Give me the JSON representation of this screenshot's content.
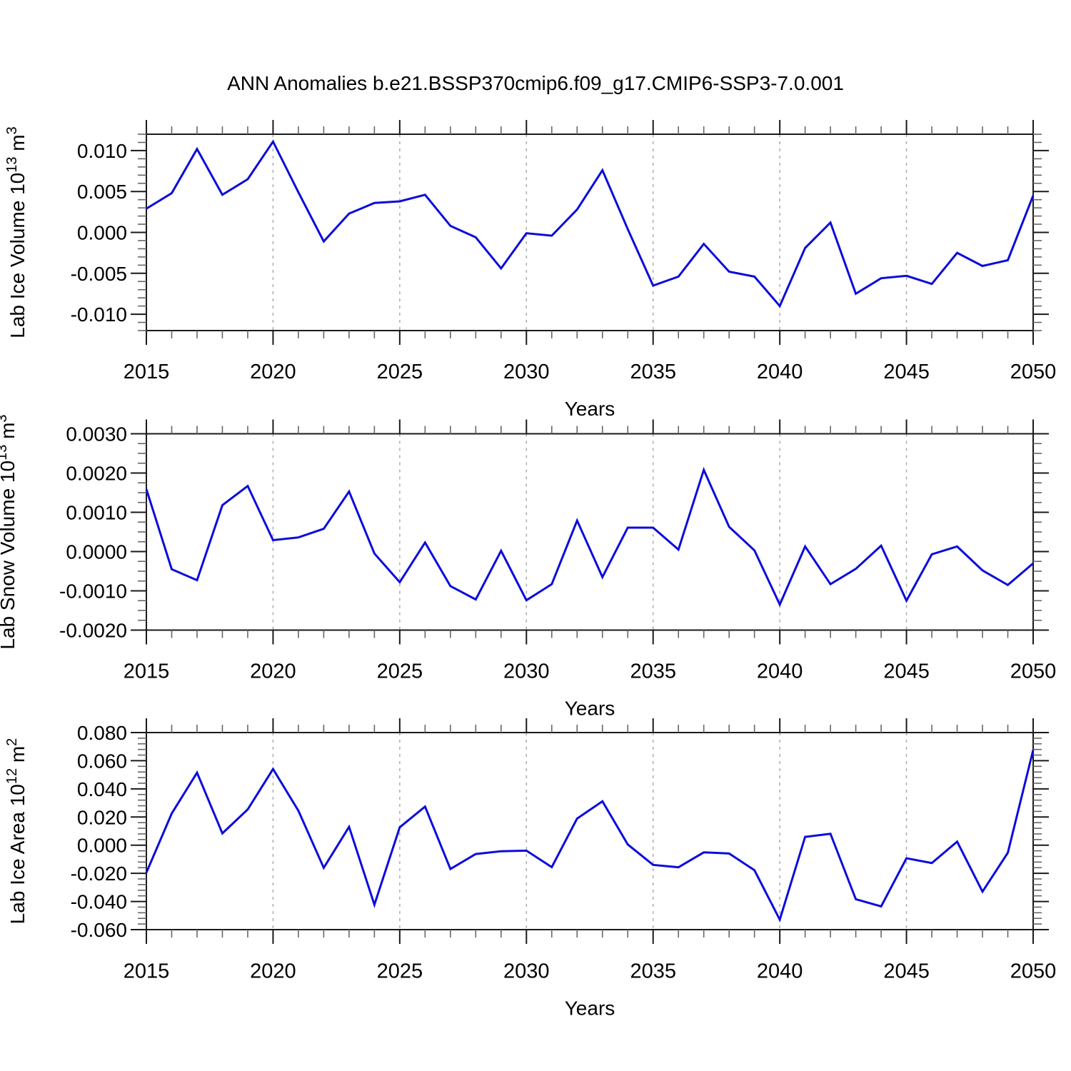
{
  "title": "ANN Anomalies b.e21.BSSP370cmip6.f09_g17.CMIP6-SSP3-7.0.001",
  "colors": {
    "line": "#0b0bdd",
    "grid": "#ababab",
    "axis": "#1a1a1a",
    "minor_tick": "#666666",
    "text": "#000000",
    "background": "#ffffff"
  },
  "x_axis": {
    "label": "Years",
    "range": [
      2015,
      2050
    ],
    "major_ticks": [
      2015,
      2020,
      2025,
      2030,
      2035,
      2040,
      2045,
      2050
    ],
    "tick_labels": [
      "2015",
      "2020",
      "2025",
      "2030",
      "2035",
      "2040",
      "2045",
      "2050"
    ],
    "grid_years": [
      2020,
      2025,
      2030,
      2035,
      2040,
      2045
    ],
    "minor_step_years": 1
  },
  "years": [
    2015,
    2016,
    2017,
    2018,
    2019,
    2020,
    2021,
    2022,
    2023,
    2024,
    2025,
    2026,
    2027,
    2028,
    2029,
    2030,
    2031,
    2032,
    2033,
    2034,
    2035,
    2036,
    2037,
    2038,
    2039,
    2040,
    2041,
    2042,
    2043,
    2044,
    2045,
    2046,
    2047,
    2048,
    2049,
    2050
  ],
  "chart_data": [
    {
      "type": "line",
      "name": "lab-ice-volume",
      "ylabel_text": "Lab Ice Volume 10^13 m^3",
      "ylabel_parts": [
        {
          "t": "Lab Ice Volume 10"
        },
        {
          "t": "13",
          "sup": true
        },
        {
          "t": " m"
        },
        {
          "t": "3",
          "sup": true
        }
      ],
      "ylim": [
        -0.012,
        0.012
      ],
      "yticks": [
        {
          "label": "0.010",
          "value": 0.01
        },
        {
          "label": "0.005",
          "value": 0.005
        },
        {
          "label": "0.000",
          "value": 0.0
        },
        {
          "label": "-0.005",
          "value": -0.005
        },
        {
          "label": "-0.010",
          "value": -0.01
        }
      ],
      "y_minor_step": 0.001,
      "y_major_step": 0.005,
      "values": [
        0.0029,
        0.0048,
        0.0102,
        0.0046,
        0.0065,
        0.0111,
        0.0049,
        -0.0011,
        0.0023,
        0.0036,
        0.0038,
        0.0046,
        0.0008,
        -0.0006,
        -0.0044,
        -0.0001,
        -0.0004,
        0.0028,
        0.0076,
        0.0004,
        -0.0065,
        -0.0054,
        -0.0014,
        -0.0048,
        -0.0054,
        -0.009,
        -0.0019,
        0.0012,
        -0.0075,
        -0.0056,
        -0.0053,
        -0.0063,
        -0.0025,
        -0.0041,
        -0.0034,
        0.0045
      ]
    },
    {
      "type": "line",
      "name": "lab-snow-volume",
      "ylabel_text": "Lab Snow Volume 10^13 m^3",
      "ylabel_parts": [
        {
          "t": "Lab Snow Volume 10"
        },
        {
          "t": "13",
          "sup": true
        },
        {
          "t": " m"
        },
        {
          "t": "3",
          "sup": true
        }
      ],
      "ylim": [
        -0.002,
        0.003
      ],
      "yticks": [
        {
          "label": "0.0030",
          "value": 0.003
        },
        {
          "label": "0.0020",
          "value": 0.002
        },
        {
          "label": "0.0010",
          "value": 0.001
        },
        {
          "label": "0.0000",
          "value": 0.0
        },
        {
          "label": "-0.0010",
          "value": -0.001
        },
        {
          "label": "-0.0020",
          "value": -0.002
        }
      ],
      "y_minor_step": 0.00025,
      "y_major_step": 0.001,
      "values": [
        0.00159,
        -0.00045,
        -0.00073,
        0.00118,
        0.00167,
        0.00029,
        0.00036,
        0.00058,
        0.00153,
        -5e-05,
        -0.00078,
        0.00023,
        -0.00088,
        -0.00122,
        2e-05,
        -0.00124,
        -0.00083,
        0.00079,
        -0.00065,
        0.00061,
        0.00061,
        5e-05,
        0.00208,
        0.00063,
        3e-05,
        -0.00135,
        0.00013,
        -0.00083,
        -0.00044,
        0.00015,
        -0.00125,
        -7e-05,
        0.00013,
        -0.00048,
        -0.00085,
        -0.0003
      ]
    },
    {
      "type": "line",
      "name": "lab-ice-area",
      "ylabel_text": "Lab Ice Area 10^12 m^2",
      "ylabel_parts": [
        {
          "t": "Lab Ice Area 10"
        },
        {
          "t": "12",
          "sup": true
        },
        {
          "t": " m"
        },
        {
          "t": "2",
          "sup": true
        }
      ],
      "ylim": [
        -0.06,
        0.08
      ],
      "yticks": [
        {
          "label": "0.080",
          "value": 0.08
        },
        {
          "label": "0.060",
          "value": 0.06
        },
        {
          "label": "0.040",
          "value": 0.04
        },
        {
          "label": "0.020",
          "value": 0.02
        },
        {
          "label": "0.000",
          "value": 0.0
        },
        {
          "label": "-0.020",
          "value": -0.02
        },
        {
          "label": "-0.040",
          "value": -0.04
        },
        {
          "label": "-0.060",
          "value": -0.06
        }
      ],
      "y_minor_step": 0.004,
      "y_major_step": 0.02,
      "values": [
        -0.0195,
        0.0225,
        0.0515,
        0.0084,
        0.0254,
        0.0541,
        0.0245,
        -0.0161,
        0.013,
        -0.0423,
        0.0127,
        0.0274,
        -0.0169,
        -0.0063,
        -0.0043,
        -0.0039,
        -0.0156,
        0.0189,
        0.0312,
        0.0005,
        -0.014,
        -0.0157,
        -0.0051,
        -0.0059,
        -0.0178,
        -0.0529,
        0.0059,
        0.0081,
        -0.0384,
        -0.0435,
        -0.0093,
        -0.0127,
        0.0025,
        -0.033,
        -0.0054,
        0.0676
      ]
    }
  ]
}
